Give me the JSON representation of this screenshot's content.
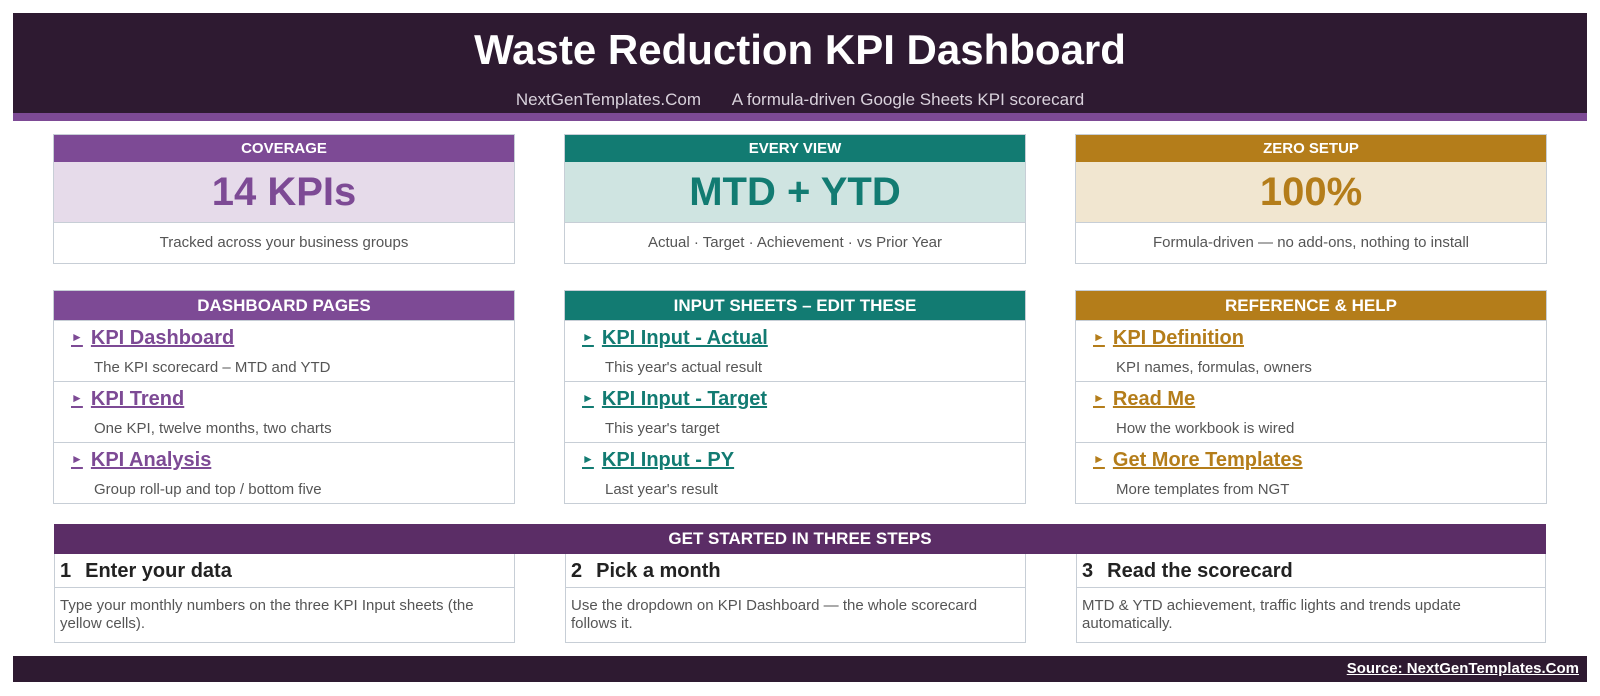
{
  "header": {
    "title": "Waste Reduction KPI Dashboard",
    "site": "NextGenTemplates.Com",
    "tagline": "A formula-driven Google Sheets KPI scorecard"
  },
  "colors": {
    "header_bg": "#2e1a31",
    "purple": "#7d4a95",
    "teal": "#127b72",
    "gold": "#b47d1a",
    "steps_bg": "#5b2d66"
  },
  "stat_cards": [
    {
      "heading": "COVERAGE",
      "value": "14 KPIs",
      "desc": "Tracked across your business groups"
    },
    {
      "heading": "EVERY VIEW",
      "value": "MTD + YTD",
      "desc": "Actual · Target · Achievement · vs Prior Year"
    },
    {
      "heading": "ZERO SETUP",
      "value": "100%",
      "desc": "Formula-driven — no add-ons, nothing to install"
    }
  ],
  "panels": [
    {
      "heading": "DASHBOARD PAGES",
      "items": [
        {
          "label": "KPI Dashboard",
          "desc": "The KPI scorecard – MTD and YTD"
        },
        {
          "label": "KPI Trend",
          "desc": "One KPI, twelve months, two charts"
        },
        {
          "label": "KPI Analysis",
          "desc": "Group roll-up and top / bottom five"
        }
      ]
    },
    {
      "heading": "INPUT SHEETS – EDIT THESE",
      "items": [
        {
          "label": "KPI Input - Actual",
          "desc": "This year's actual result"
        },
        {
          "label": "KPI Input - Target",
          "desc": "This year's target"
        },
        {
          "label": "KPI Input - PY",
          "desc": "Last year's result"
        }
      ]
    },
    {
      "heading": "REFERENCE & HELP",
      "items": [
        {
          "label": "KPI Definition",
          "desc": "KPI names, formulas, owners"
        },
        {
          "label": "Read Me",
          "desc": "How the workbook is wired"
        },
        {
          "label": "Get More Templates",
          "desc": "More templates from NGT"
        }
      ]
    }
  ],
  "link_arrow": "►",
  "steps": {
    "heading": "GET STARTED IN THREE STEPS",
    "items": [
      {
        "num": "1",
        "title": "Enter your data",
        "body": "Type your monthly numbers on the three KPI Input sheets (the yellow cells)."
      },
      {
        "num": "2",
        "title": "Pick a month",
        "body": "Use the dropdown on KPI Dashboard — the whole scorecard follows it."
      },
      {
        "num": "3",
        "title": "Read the scorecard",
        "body": "MTD & YTD achievement, traffic lights and trends update automatically."
      }
    ]
  },
  "footer": {
    "source": "Source: NextGenTemplates.Com"
  }
}
